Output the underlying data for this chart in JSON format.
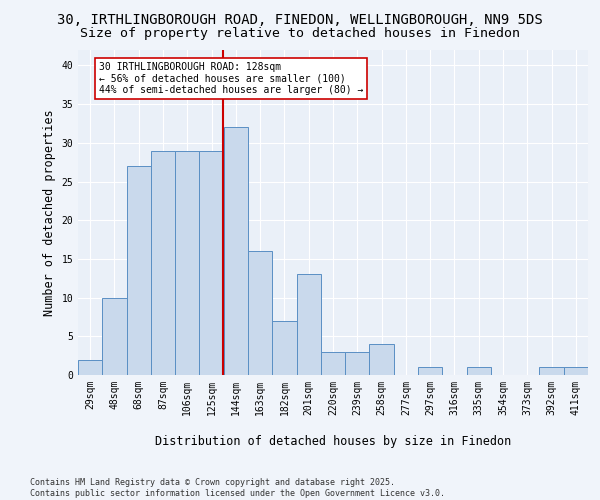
{
  "title_line1": "30, IRTHLINGBOROUGH ROAD, FINEDON, WELLINGBOROUGH, NN9 5DS",
  "title_line2": "Size of property relative to detached houses in Finedon",
  "xlabel": "Distribution of detached houses by size in Finedon",
  "ylabel": "Number of detached properties",
  "categories": [
    "29sqm",
    "48sqm",
    "68sqm",
    "87sqm",
    "106sqm",
    "125sqm",
    "144sqm",
    "163sqm",
    "182sqm",
    "201sqm",
    "220sqm",
    "239sqm",
    "258sqm",
    "277sqm",
    "297sqm",
    "316sqm",
    "335sqm",
    "354sqm",
    "373sqm",
    "392sqm",
    "411sqm"
  ],
  "values": [
    2,
    10,
    27,
    29,
    29,
    29,
    32,
    16,
    7,
    13,
    3,
    3,
    4,
    0,
    1,
    0,
    1,
    0,
    0,
    1,
    1
  ],
  "bar_color": "#c9d9ec",
  "bar_edge_color": "#5a8fc4",
  "red_line_index": 5.47,
  "annotation_text": "30 IRTHLINGBOROUGH ROAD: 128sqm\n← 56% of detached houses are smaller (100)\n44% of semi-detached houses are larger (80) →",
  "annotation_box_color": "#ffffff",
  "annotation_box_edge": "#cc0000",
  "red_line_color": "#cc0000",
  "ylim": [
    0,
    42
  ],
  "yticks": [
    0,
    5,
    10,
    15,
    20,
    25,
    30,
    35,
    40
  ],
  "footer": "Contains HM Land Registry data © Crown copyright and database right 2025.\nContains public sector information licensed under the Open Government Licence v3.0.",
  "bg_color": "#eaf0f8",
  "grid_color": "#ffffff",
  "fig_bg_color": "#f0f4fa",
  "title_fontsize": 10,
  "subtitle_fontsize": 9.5,
  "tick_fontsize": 7,
  "label_fontsize": 8.5,
  "footer_fontsize": 6,
  "annot_fontsize": 7
}
